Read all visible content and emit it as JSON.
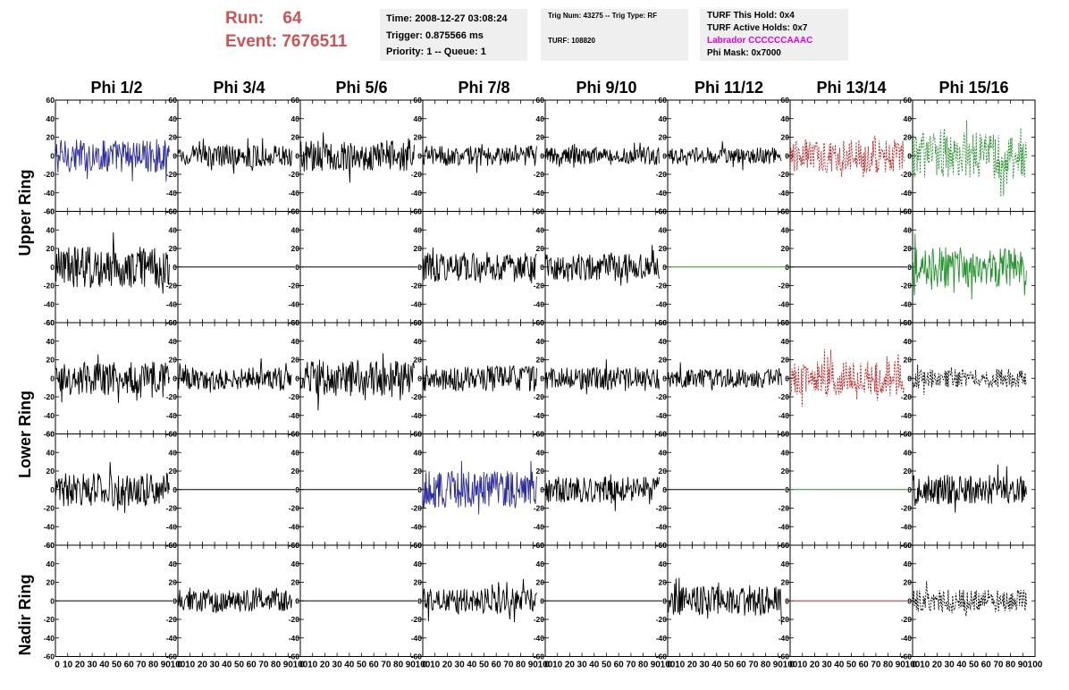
{
  "header": {
    "run_label": "Run:    64",
    "event_label": "Event: 7676511",
    "time": "Time: 2008-12-27 03:08:24",
    "trigger": "Trigger: 0.875566 ms",
    "priority": "Priority: 1 -- Queue: 1",
    "trig_num": "Trig Num: 43275 -- Trig Type: RF",
    "turf": "TURF: 108820",
    "turf_this_hold": "TURF This Hold: 0x4",
    "turf_active_holds": "TURF Active Holds: 0x7",
    "labrador": "Labrador CCCCCCAAAC",
    "phi_mask": "Phi Mask: 0x7000"
  },
  "columns": [
    "Phi 1/2",
    "Phi 3/4",
    "Phi 5/6",
    "Phi 7/8",
    "Phi 9/10",
    "Phi 11/12",
    "Phi 13/14",
    "Phi 15/16"
  ],
  "row_labels": [
    "Upper Ring",
    "Lower Ring",
    "Nadir Ring"
  ],
  "axis": {
    "y_ticks": [
      "60",
      "40",
      "20",
      "0",
      "-20",
      "-40",
      "-60"
    ],
    "x_ticks": [
      "0",
      "10",
      "20",
      "30",
      "40",
      "50",
      "60",
      "70",
      "80",
      "90",
      "100"
    ]
  },
  "colors": {
    "title_red": "#d05252",
    "info_bg": "#efefef",
    "labrador_magenta": "#e000e0",
    "trace_black": "#000000",
    "trace_blue": "#2b2b9a",
    "trace_red": "#c02020",
    "trace_green": "#22922a"
  },
  "chart_data": {
    "type": "line",
    "xlim": [
      0,
      100
    ],
    "ylim": [
      -60,
      60
    ],
    "grid": false,
    "panels": [
      {
        "row": 0,
        "col": 0,
        "color": "blue",
        "style": "solid",
        "amplitude": 18,
        "flat": false
      },
      {
        "row": 0,
        "col": 1,
        "color": "black",
        "style": "solid",
        "amplitude": 12,
        "flat": false
      },
      {
        "row": 0,
        "col": 2,
        "color": "black",
        "style": "solid",
        "amplitude": 17,
        "flat": false
      },
      {
        "row": 0,
        "col": 3,
        "color": "black",
        "style": "solid",
        "amplitude": 11,
        "flat": false
      },
      {
        "row": 0,
        "col": 4,
        "color": "black",
        "style": "solid",
        "amplitude": 10,
        "flat": false
      },
      {
        "row": 0,
        "col": 5,
        "color": "black",
        "style": "solid",
        "amplitude": 9,
        "flat": false
      },
      {
        "row": 0,
        "col": 6,
        "color": "red",
        "style": "dashed",
        "amplitude": 18,
        "flat": false
      },
      {
        "row": 0,
        "col": 7,
        "color": "green",
        "style": "dashed",
        "amplitude": 25,
        "flat": false
      },
      {
        "row": 1,
        "col": 0,
        "color": "black",
        "style": "solid",
        "amplitude": 22,
        "flat": false
      },
      {
        "row": 1,
        "col": 1,
        "color": "black",
        "style": "solid",
        "amplitude": 0,
        "flat": true
      },
      {
        "row": 1,
        "col": 2,
        "color": "black",
        "style": "solid",
        "amplitude": 0,
        "flat": true
      },
      {
        "row": 1,
        "col": 3,
        "color": "black",
        "style": "solid",
        "amplitude": 16,
        "flat": false
      },
      {
        "row": 1,
        "col": 4,
        "color": "black",
        "style": "solid",
        "amplitude": 14,
        "flat": false
      },
      {
        "row": 1,
        "col": 5,
        "color": "green",
        "style": "solid",
        "amplitude": 0,
        "flat": true
      },
      {
        "row": 1,
        "col": 6,
        "color": "black",
        "style": "solid",
        "amplitude": 0,
        "flat": true
      },
      {
        "row": 1,
        "col": 7,
        "color": "green",
        "style": "solid",
        "amplitude": 22,
        "flat": false
      },
      {
        "row": 2,
        "col": 0,
        "color": "black",
        "style": "solid",
        "amplitude": 18,
        "flat": false
      },
      {
        "row": 2,
        "col": 1,
        "color": "black",
        "style": "solid",
        "amplitude": 12,
        "flat": false
      },
      {
        "row": 2,
        "col": 2,
        "color": "black",
        "style": "solid",
        "amplitude": 20,
        "flat": false
      },
      {
        "row": 2,
        "col": 3,
        "color": "black",
        "style": "solid",
        "amplitude": 14,
        "flat": false
      },
      {
        "row": 2,
        "col": 4,
        "color": "black",
        "style": "solid",
        "amplitude": 12,
        "flat": false
      },
      {
        "row": 2,
        "col": 5,
        "color": "black",
        "style": "solid",
        "amplitude": 10,
        "flat": false
      },
      {
        "row": 2,
        "col": 6,
        "color": "red",
        "style": "dashed",
        "amplitude": 18,
        "flat": false
      },
      {
        "row": 2,
        "col": 7,
        "color": "black",
        "style": "dashed",
        "amplitude": 10,
        "flat": false
      },
      {
        "row": 3,
        "col": 0,
        "color": "black",
        "style": "solid",
        "amplitude": 18,
        "flat": false
      },
      {
        "row": 3,
        "col": 1,
        "color": "black",
        "style": "solid",
        "amplitude": 0,
        "flat": true
      },
      {
        "row": 3,
        "col": 2,
        "color": "black",
        "style": "solid",
        "amplitude": 0,
        "flat": true
      },
      {
        "row": 3,
        "col": 3,
        "color": "blue",
        "style": "solid",
        "amplitude": 20,
        "flat": false
      },
      {
        "row": 3,
        "col": 4,
        "color": "black",
        "style": "solid",
        "amplitude": 14,
        "flat": false
      },
      {
        "row": 3,
        "col": 5,
        "color": "black",
        "style": "solid",
        "amplitude": 0,
        "flat": true
      },
      {
        "row": 3,
        "col": 6,
        "color": "green",
        "style": "solid",
        "amplitude": 0,
        "flat": true
      },
      {
        "row": 3,
        "col": 7,
        "color": "black",
        "style": "solid",
        "amplitude": 16,
        "flat": false
      },
      {
        "row": 4,
        "col": 0,
        "color": "black",
        "style": "solid",
        "amplitude": 0,
        "flat": true
      },
      {
        "row": 4,
        "col": 1,
        "color": "black",
        "style": "solid",
        "amplitude": 12,
        "flat": false
      },
      {
        "row": 4,
        "col": 2,
        "color": "black",
        "style": "solid",
        "amplitude": 0,
        "flat": true
      },
      {
        "row": 4,
        "col": 3,
        "color": "black",
        "style": "solid",
        "amplitude": 14,
        "flat": false
      },
      {
        "row": 4,
        "col": 4,
        "color": "black",
        "style": "solid",
        "amplitude": 0,
        "flat": true
      },
      {
        "row": 4,
        "col": 5,
        "color": "black",
        "style": "solid",
        "amplitude": 16,
        "flat": false
      },
      {
        "row": 4,
        "col": 6,
        "color": "red",
        "style": "solid",
        "amplitude": 0,
        "flat": true
      },
      {
        "row": 4,
        "col": 7,
        "color": "black",
        "style": "dashed",
        "amplitude": 12,
        "flat": false
      }
    ]
  }
}
